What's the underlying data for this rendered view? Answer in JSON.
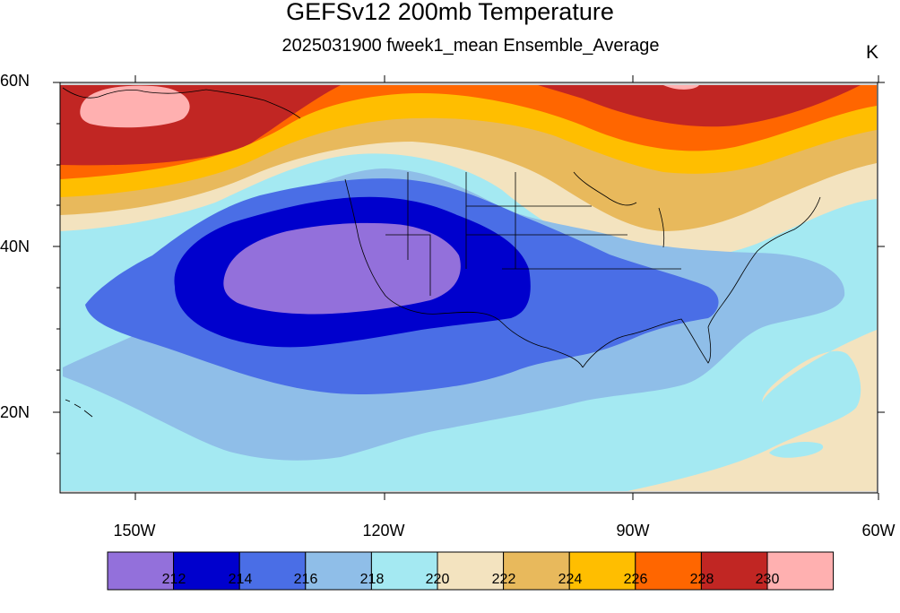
{
  "header": {
    "title": "GEFSv12 200mb Temperature",
    "subtitle": "2025031900 fweek1_mean Ensemble_Average",
    "units": "K"
  },
  "axes": {
    "lat_labels": [
      "60N",
      "40N",
      "20N"
    ],
    "lon_labels": [
      "150W",
      "120W",
      "90W",
      "60W"
    ]
  },
  "colorbar": {
    "labels": [
      "212",
      "214",
      "216",
      "218",
      "220",
      "222",
      "224",
      "226",
      "228",
      "230"
    ],
    "colors": [
      "#9370DB",
      "#0000CD",
      "#4A6EE6",
      "#8FBEE8",
      "#A4E9F2",
      "#F3E3BF",
      "#E8B95C",
      "#FFBE00",
      "#FF6600",
      "#C12623",
      "#FFB0B0"
    ]
  },
  "map": {
    "projection": "cylindrical-equidistant",
    "lat_range": [
      10,
      60
    ],
    "lon_range": [
      -160,
      -60
    ],
    "land_color": "#d3d3d3"
  }
}
